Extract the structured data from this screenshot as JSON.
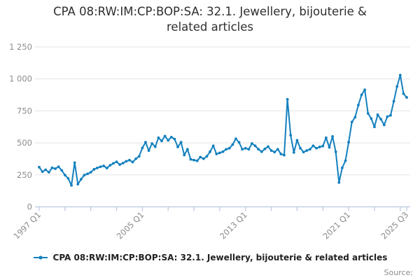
{
  "title": "CPA 08:RW:IM:CP:BOP:SA: 32.1. Jewellery, bijouterie & related articles",
  "legend": {
    "series_label": "CPA 08:RW:IM:CP:BOP:SA: 32.1. Jewellery, bijouterie & related articles"
  },
  "source_label": "Source:",
  "colors": {
    "series": "#1380be",
    "grid": "#e3e3e3",
    "axis": "#b9c7de",
    "tick_label": "#8c8c8c",
    "title_text": "#2e2e2e",
    "legend_text": "#222222"
  },
  "chart_data": {
    "type": "line",
    "title": "CPA 08:RW:IM:CP:BOP:SA: 32.1. Jewellery, bijouterie & related articles",
    "x_frequency": "quarterly",
    "x_start_label": "1997 Q1",
    "x_end_label": "2025 Q3",
    "x_minor_tick_every": 8,
    "x_tick_labels": [
      {
        "index": 0,
        "label": "1997 Q1"
      },
      {
        "index": 32,
        "label": "2005 Q1"
      },
      {
        "index": 64,
        "label": "2013 Q1"
      },
      {
        "index": 96,
        "label": "2021 Q1"
      },
      {
        "index": 114,
        "label": "2025 Q3"
      }
    ],
    "ylim": [
      0,
      1250
    ],
    "y_ticks": [
      {
        "value": 0,
        "label": "0"
      },
      {
        "value": 250,
        "label": "250"
      },
      {
        "value": 500,
        "label": "500"
      },
      {
        "value": 750,
        "label": "750"
      },
      {
        "value": 1000,
        "label": "1 000"
      },
      {
        "value": 1250,
        "label": "1 250"
      }
    ],
    "grid": "horizontal",
    "legend_position": "bottom",
    "marker": "circle",
    "series": [
      {
        "name": "CPA 08:RW:IM:CP:BOP:SA: 32.1. Jewellery, bijouterie & related articles",
        "values": [
          310,
          275,
          290,
          270,
          305,
          298,
          313,
          285,
          248,
          222,
          168,
          345,
          177,
          216,
          248,
          258,
          270,
          293,
          304,
          313,
          320,
          303,
          325,
          340,
          352,
          330,
          342,
          356,
          365,
          350,
          376,
          395,
          460,
          505,
          440,
          495,
          470,
          540,
          515,
          553,
          520,
          545,
          530,
          468,
          505,
          405,
          450,
          371,
          365,
          360,
          389,
          376,
          395,
          431,
          477,
          413,
          422,
          431,
          450,
          458,
          486,
          532,
          504,
          450,
          458,
          450,
          495,
          477,
          450,
          431,
          453,
          471,
          440,
          428,
          450,
          413,
          404,
          840,
          560,
          425,
          520,
          458,
          428,
          440,
          450,
          477,
          458,
          468,
          475,
          540,
          465,
          550,
          430,
          190,
          305,
          360,
          505,
          663,
          700,
          795,
          875,
          915,
          730,
          690,
          625,
          720,
          685,
          640,
          705,
          715,
          825,
          940,
          1030,
          885,
          855
        ]
      }
    ]
  }
}
